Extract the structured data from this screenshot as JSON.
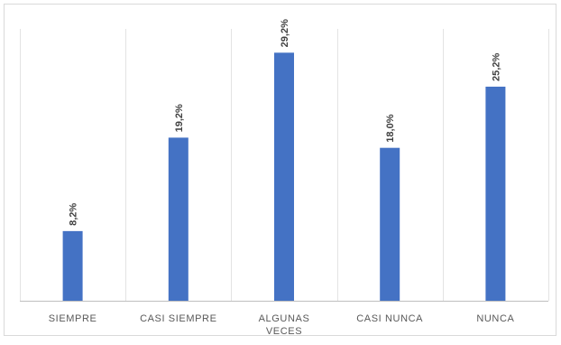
{
  "chart_data": {
    "type": "bar",
    "categories": [
      [
        "SIEMPRE"
      ],
      [
        "CASI SIEMPRE"
      ],
      [
        "ALGUNAS",
        "VECES"
      ],
      [
        "CASI NUNCA"
      ],
      [
        "NUNCA"
      ]
    ],
    "values": [
      8.2,
      19.2,
      29.2,
      18.0,
      25.2
    ],
    "data_labels": [
      "8,2%",
      "19,2%",
      "29,2%",
      "18,0%",
      "25,2%"
    ],
    "ylim": [
      0,
      32
    ],
    "bar_color": "#4472C4",
    "grid": "vertical separators",
    "legend": "none"
  }
}
